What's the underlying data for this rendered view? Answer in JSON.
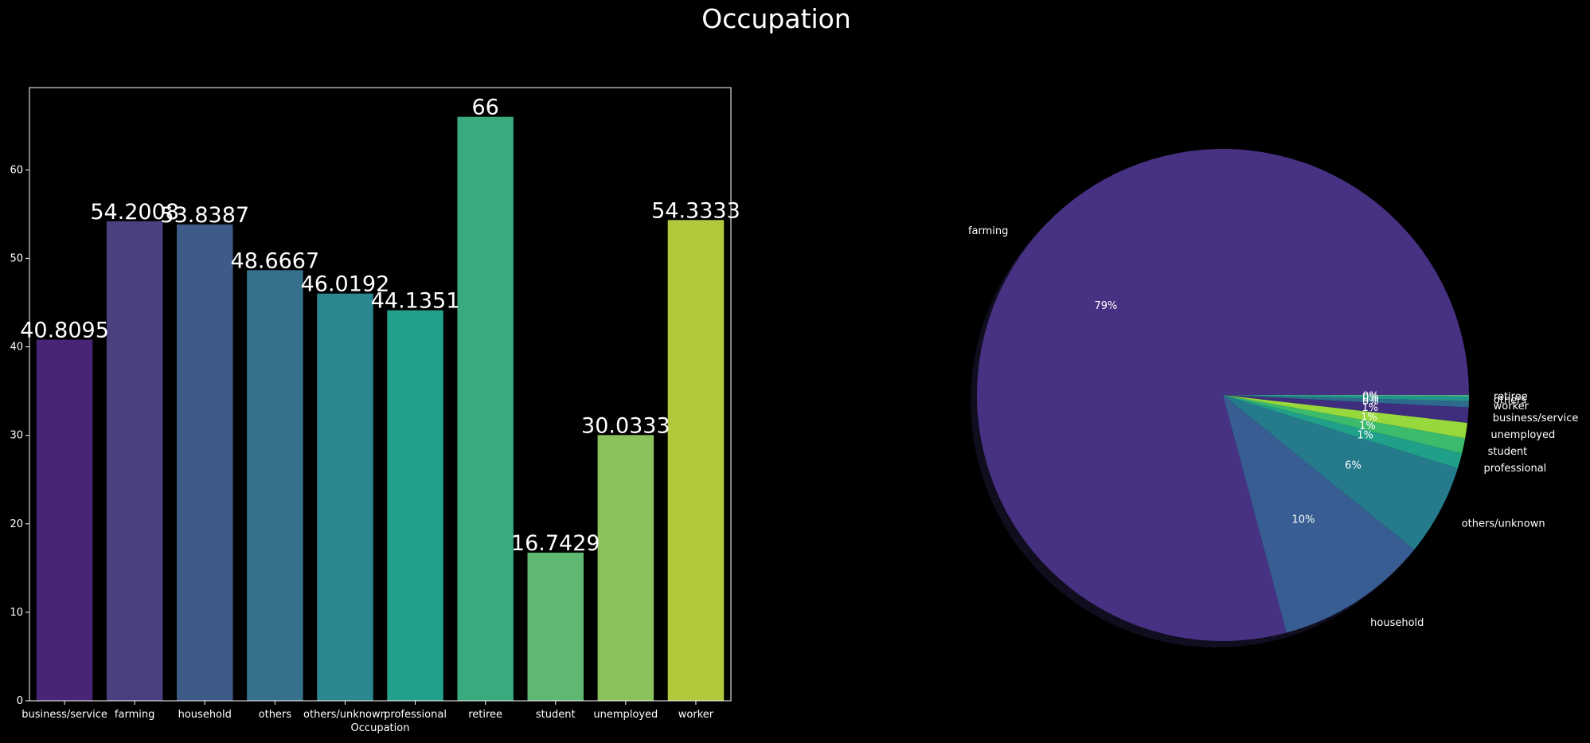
{
  "title": "Occupation",
  "chart_data": [
    {
      "type": "bar",
      "xlabel": "Occupation",
      "ylabel": "",
      "ylim": [
        0,
        69.3
      ],
      "yticks": [
        0,
        10,
        20,
        30,
        40,
        50,
        60
      ],
      "categories": [
        "business/service",
        "farming",
        "household",
        "others",
        "others/unknown",
        "professional",
        "retiree",
        "student",
        "unemployed",
        "worker"
      ],
      "values": [
        40.8095,
        54.2008,
        53.8387,
        48.6667,
        46.0192,
        44.1351,
        66,
        16.7429,
        30.0333,
        54.3333
      ],
      "value_labels": [
        "40.8095",
        "54.2008",
        "53.8387",
        "48.6667",
        "46.0192",
        "44.1351",
        "66",
        "16.7429",
        "30.0333",
        "54.3333"
      ],
      "colors": [
        "#482575",
        "#48417d",
        "#3e5a87",
        "#35708d",
        "#2b8790",
        "#23a08a",
        "#39a97e",
        "#5fb872",
        "#8bc15b",
        "#b2c93c"
      ],
      "grid": false
    },
    {
      "type": "pie",
      "labels": [
        "farming",
        "household",
        "others/unknown",
        "professional",
        "student",
        "unemployed",
        "business/service",
        "worker",
        "others",
        "retiree"
      ],
      "values": [
        79,
        10,
        6,
        1,
        1,
        1,
        1,
        0.4,
        0.3,
        0.1
      ],
      "pct_labels": [
        "79%",
        "10%",
        "6%",
        "1%",
        "1%",
        "1%",
        "1%",
        "0%",
        "0%",
        "0%"
      ],
      "colors": [
        "#473183",
        "#375d92",
        "#257b8c",
        "#20a088",
        "#3cbb6c",
        "#97d83c",
        "#3f2d7d",
        "#2d6a8e",
        "#21958b",
        "#47b37f"
      ],
      "shadow": true
    }
  ]
}
